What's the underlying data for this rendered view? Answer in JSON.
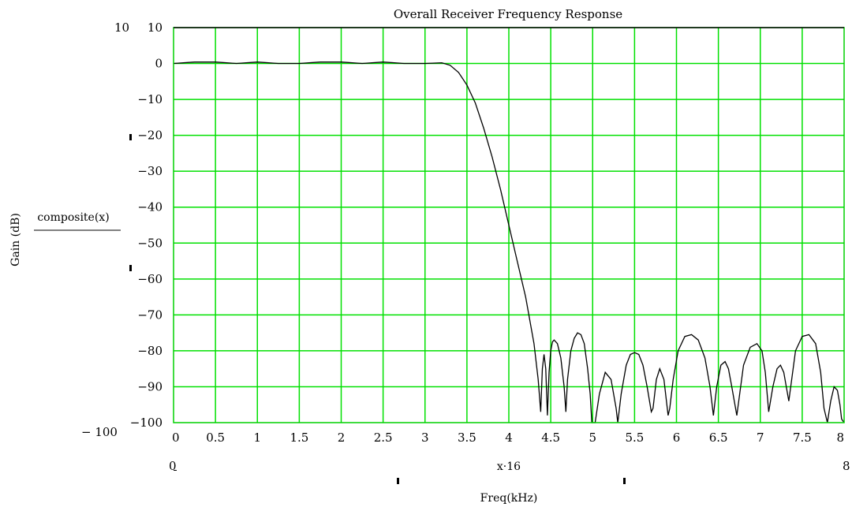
{
  "chart_data": {
    "type": "line",
    "title": "Overall Receiver Frequency Response",
    "xlabel": "Freq(kHz)",
    "ylabel": "Gain (dB)",
    "trace_label": "composite(x)",
    "x_expression": "x·16",
    "xlim": [
      0,
      8
    ],
    "ylim": [
      -100,
      10
    ],
    "x_ticks": [
      "0",
      "0.5",
      "1",
      "1.5",
      "2",
      "2.5",
      "3",
      "3.5",
      "4",
      "4.5",
      "5",
      "5.5",
      "6",
      "6.5",
      "7",
      "7.5",
      "8"
    ],
    "y_ticks": [
      "10",
      "0",
      "−10",
      "−20",
      "−30",
      "−40",
      "−50",
      "−60",
      "−70",
      "−80",
      "−90",
      "−100"
    ],
    "range_labels": {
      "y_max": "10",
      "y_min": "− 100",
      "x_min": "0",
      "x_max": "8"
    },
    "grid": true,
    "grid_color": "#00e000",
    "line_color": "#000000",
    "series": [
      {
        "x": [
          0,
          0.25,
          0.5,
          0.75,
          1.0,
          1.25,
          1.5,
          1.75,
          2.0,
          2.25,
          2.5,
          2.75,
          3.0,
          3.2,
          3.3,
          3.4,
          3.5,
          3.6,
          3.7,
          3.8,
          3.9,
          4.0,
          4.1,
          4.2,
          4.3,
          4.35,
          4.38,
          4.4,
          4.42,
          4.44,
          4.46,
          4.48,
          4.5,
          4.52,
          4.54,
          4.58,
          4.62,
          4.66,
          4.68,
          4.7,
          4.74,
          4.78,
          4.82,
          4.86,
          4.9,
          4.94,
          4.97,
          4.99,
          5.03,
          5.08,
          5.15,
          5.22,
          5.28,
          5.3,
          5.34,
          5.4,
          5.45,
          5.5,
          5.55,
          5.6,
          5.65,
          5.7,
          5.72,
          5.76,
          5.8,
          5.85,
          5.9,
          5.92,
          5.96,
          6.02,
          6.1,
          6.18,
          6.26,
          6.34,
          6.4,
          6.44,
          6.48,
          6.53,
          6.58,
          6.62,
          6.66,
          6.72,
          6.8,
          6.88,
          6.96,
          7.02,
          7.06,
          7.1,
          7.15,
          7.2,
          7.24,
          7.28,
          7.34,
          7.42,
          7.5,
          7.58,
          7.66,
          7.72,
          7.76,
          7.8,
          7.84,
          7.88,
          7.92,
          7.95,
          7.97,
          8.0
        ],
        "y": [
          0,
          0.4,
          0.4,
          0,
          0.4,
          0,
          0,
          0.4,
          0.4,
          0,
          0.4,
          0,
          0,
          0.2,
          -0.5,
          -2.5,
          -6,
          -11,
          -18,
          -26,
          -35,
          -45,
          -55,
          -65,
          -78,
          -88,
          -97,
          -85,
          -81,
          -85,
          -98,
          -86,
          -80,
          -77.5,
          -77,
          -78,
          -82,
          -90,
          -97,
          -88,
          -80,
          -76.5,
          -75,
          -75.5,
          -78,
          -85,
          -92,
          -100,
          -100,
          -92,
          -86,
          -88,
          -96,
          -100,
          -92,
          -84,
          -81,
          -80.5,
          -81,
          -84,
          -90,
          -97,
          -96,
          -88,
          -85,
          -88,
          -98,
          -96,
          -88,
          -80,
          -76,
          -75.5,
          -77,
          -82,
          -90,
          -98,
          -90,
          -84,
          -83,
          -85,
          -90,
          -98,
          -84,
          -79,
          -78,
          -80,
          -86,
          -97,
          -90,
          -85,
          -84,
          -86,
          -94,
          -80,
          -76,
          -75.5,
          -78,
          -86,
          -96,
          -100,
          -94,
          -90,
          -91,
          -95,
          -99,
          -100
        ]
      }
    ]
  }
}
